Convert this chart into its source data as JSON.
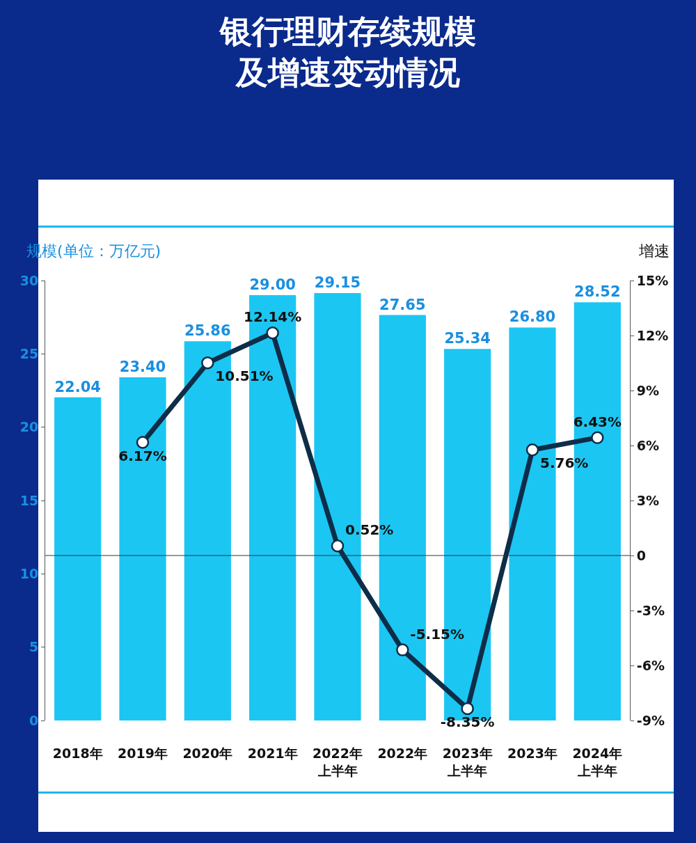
{
  "chart_data": {
    "type": "bar",
    "title": "银行理财存续规模及增速变动情况",
    "ylabel": "规模(单位：万亿元)",
    "y2label": "增速",
    "categories": [
      "2018年",
      "2019年",
      "2020年",
      "2021年",
      "2022年上半年",
      "2022年",
      "2023年上半年",
      "2023年",
      "2024年上半年"
    ],
    "series": [
      {
        "color": "#1cc6f2",
        "values": [
          22.04,
          23.4,
          25.86,
          29.0,
          29.15,
          27.65,
          25.34,
          26.8,
          28.52
        ],
        "value_labels": [
          "22.04",
          "23.40",
          "25.86",
          "29.00",
          "29.15",
          "27.65",
          "25.34",
          "26.80",
          "28.52"
        ]
      },
      {
        "type": "line",
        "axis": "y2",
        "color": "#0e2d48",
        "values": [
          null,
          6.17,
          10.51,
          12.14,
          0.52,
          -5.15,
          -8.35,
          5.76,
          6.43
        ],
        "value_labels": [
          null,
          "6.17%",
          "10.51%",
          "12.14%",
          "0.52%",
          "-5.15%",
          "-8.35%",
          "5.76%",
          "6.43%"
        ]
      }
    ],
    "ylim": [
      0,
      30
    ],
    "yticks": [
      0,
      5,
      10,
      15,
      20,
      25,
      30
    ],
    "y2lim": [
      -9,
      15
    ],
    "y2ticks": [
      {
        "value": -9,
        "label": "-9%"
      },
      {
        "value": -6,
        "label": "-6%"
      },
      {
        "value": -3,
        "label": "-3%"
      },
      {
        "value": 0,
        "label": "0"
      },
      {
        "value": 3,
        "label": "3%"
      },
      {
        "value": 6,
        "label": "6%"
      },
      {
        "value": 9,
        "label": "9%"
      },
      {
        "value": 12,
        "label": "12%"
      },
      {
        "value": 15,
        "label": "15%"
      }
    ],
    "ref_lines": [
      {
        "axis": "y2",
        "value": 0,
        "color": "#333333"
      }
    ],
    "marker": "circle"
  }
}
